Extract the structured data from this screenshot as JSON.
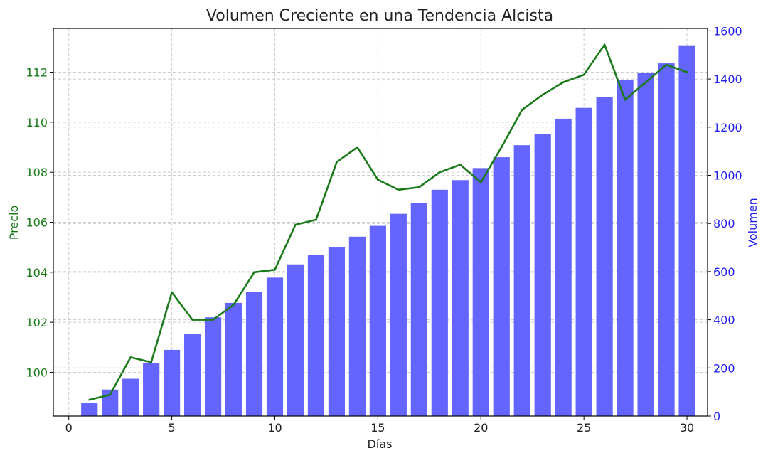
{
  "chart_data": {
    "type": "bar",
    "title": "Volumen Creciente en una Tendencia Alcista",
    "xlabel": "Días",
    "ylabel_left": "Precio",
    "ylabel_right": "Volumen",
    "x": [
      1,
      2,
      3,
      4,
      5,
      6,
      7,
      8,
      9,
      10,
      11,
      12,
      13,
      14,
      15,
      16,
      17,
      18,
      19,
      20,
      21,
      22,
      23,
      24,
      25,
      26,
      27,
      28,
      29,
      30
    ],
    "xlim": [
      -0.75,
      31.0
    ],
    "xticks": [
      0,
      5,
      10,
      15,
      20,
      25,
      30
    ],
    "ylim_left": [
      98.25,
      113.75
    ],
    "yticks_left": [
      100,
      102,
      104,
      106,
      108,
      110,
      112
    ],
    "ylim_right": [
      0,
      1610
    ],
    "yticks_right": [
      0,
      200,
      400,
      600,
      800,
      1000,
      1200,
      1400,
      1600
    ],
    "grid": true,
    "colors": {
      "price": "#1a7a1a",
      "volume": "#6464ff",
      "left_axis": "#1a7a1a",
      "right_axis": "#2020ee",
      "text": "#222222"
    },
    "series": [
      {
        "name": "Volumen",
        "type": "bar",
        "axis": "right",
        "values": [
          55,
          110,
          155,
          220,
          275,
          340,
          410,
          470,
          515,
          575,
          630,
          670,
          700,
          745,
          790,
          840,
          885,
          940,
          980,
          1030,
          1075,
          1125,
          1170,
          1235,
          1280,
          1325,
          1395,
          1425,
          1465,
          1540
        ]
      },
      {
        "name": "Precio",
        "type": "line",
        "axis": "left",
        "values": [
          98.9,
          99.1,
          100.6,
          100.4,
          103.2,
          102.1,
          102.1,
          102.7,
          104.0,
          104.1,
          105.9,
          106.1,
          108.4,
          109.0,
          107.7,
          107.3,
          107.4,
          108.0,
          108.3,
          107.6,
          109.0,
          110.5,
          111.1,
          111.6,
          111.9,
          113.1,
          110.9,
          111.6,
          112.3,
          112.0
        ]
      }
    ]
  }
}
